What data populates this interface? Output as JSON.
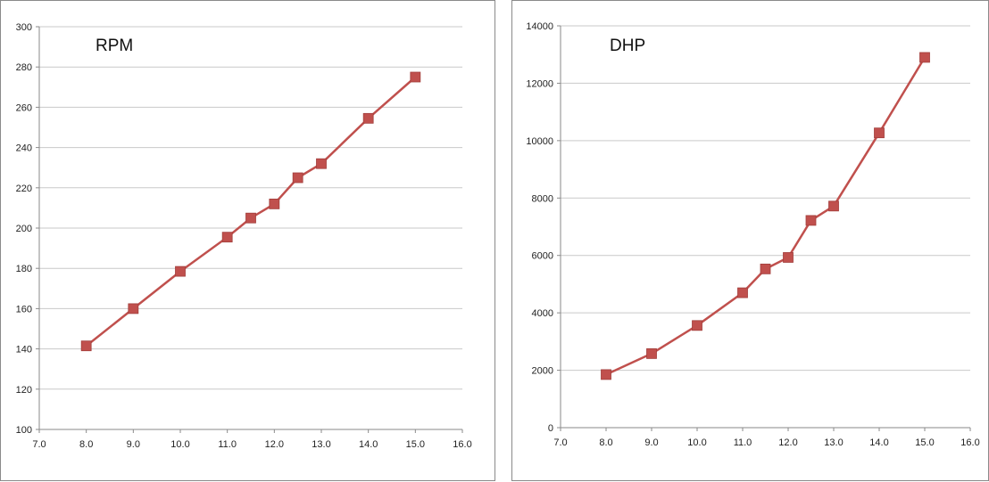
{
  "chart_data": [
    {
      "type": "line",
      "title": "RPM",
      "xlabel": "",
      "ylabel": "",
      "xlim": [
        7.0,
        16.0
      ],
      "ylim": [
        100,
        300
      ],
      "x_ticks": [
        "7.0",
        "8.0",
        "9.0",
        "10.0",
        "11.0",
        "12.0",
        "13.0",
        "14.0",
        "15.0",
        "16.0"
      ],
      "y_ticks": [
        "100",
        "120",
        "140",
        "160",
        "180",
        "200",
        "220",
        "240",
        "260",
        "280",
        "300"
      ],
      "grid": "horizontal",
      "series": [
        {
          "color": "#c0504d",
          "x": [
            8.0,
            9.0,
            10.0,
            11.0,
            11.5,
            12.0,
            12.5,
            13.0,
            14.0,
            15.0
          ],
          "y": [
            141.5,
            160,
            178.5,
            195.5,
            205,
            212,
            225,
            232,
            254.5,
            275
          ]
        }
      ]
    },
    {
      "type": "line",
      "title": "DHP",
      "xlabel": "",
      "ylabel": "",
      "xlim": [
        7.0,
        16.0
      ],
      "ylim": [
        0,
        14000
      ],
      "x_ticks": [
        "7.0",
        "8.0",
        "9.0",
        "10.0",
        "11.0",
        "12.0",
        "13.0",
        "14.0",
        "15.0",
        "16.0"
      ],
      "y_ticks": [
        "0",
        "2000",
        "4000",
        "6000",
        "8000",
        "10000",
        "12000",
        "14000"
      ],
      "grid": "horizontal",
      "series": [
        {
          "color": "#c0504d",
          "x": [
            8.0,
            9.0,
            10.0,
            11.0,
            11.5,
            12.0,
            12.5,
            13.0,
            14.0,
            15.0
          ],
          "y": [
            1850,
            2580,
            3560,
            4700,
            5530,
            5930,
            7220,
            7720,
            10270,
            12900
          ]
        }
      ]
    }
  ]
}
